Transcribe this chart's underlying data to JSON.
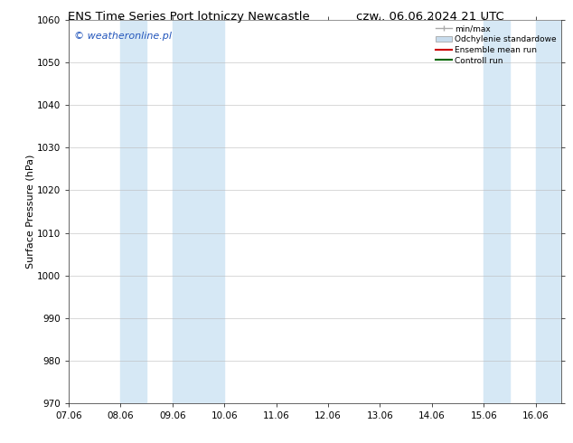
{
  "title_left": "ENS Time Series Port lotniczy Newcastle",
  "title_right": "czw.. 06.06.2024 21 UTC",
  "ylabel": "Surface Pressure (hPa)",
  "ylim": [
    970,
    1060
  ],
  "yticks": [
    970,
    980,
    990,
    1000,
    1010,
    1020,
    1030,
    1040,
    1050,
    1060
  ],
  "xlim": [
    0,
    9.5
  ],
  "xtick_labels": [
    "07.06",
    "08.06",
    "09.06",
    "10.06",
    "11.06",
    "12.06",
    "13.06",
    "14.06",
    "15.06",
    "16.06"
  ],
  "xtick_positions": [
    0,
    1,
    2,
    3,
    4,
    5,
    6,
    7,
    8,
    9
  ],
  "shaded_bands": [
    {
      "x_start": 1.0,
      "x_end": 1.5,
      "color": "#d6e8f5"
    },
    {
      "x_start": 2.0,
      "x_end": 3.0,
      "color": "#d6e8f5"
    },
    {
      "x_start": 8.0,
      "x_end": 8.5,
      "color": "#d6e8f5"
    },
    {
      "x_start": 9.0,
      "x_end": 9.5,
      "color": "#d6e8f5"
    }
  ],
  "watermark": "© weatheronline.pl",
  "watermark_color": "#2255bb",
  "legend_items": [
    {
      "label": "min/max",
      "color": "#aaaaaa",
      "type": "errorbar"
    },
    {
      "label": "Odchylenie standardowe",
      "color": "#c8dced",
      "type": "band"
    },
    {
      "label": "Ensemble mean run",
      "color": "#cc0000",
      "type": "line"
    },
    {
      "label": "Controll run",
      "color": "#006600",
      "type": "line"
    }
  ],
  "background_color": "#ffffff",
  "plot_bg_color": "#ffffff",
  "grid_color": "#bbbbbb",
  "title_fontsize": 9.5,
  "axis_label_fontsize": 8,
  "tick_fontsize": 7.5,
  "watermark_fontsize": 8
}
